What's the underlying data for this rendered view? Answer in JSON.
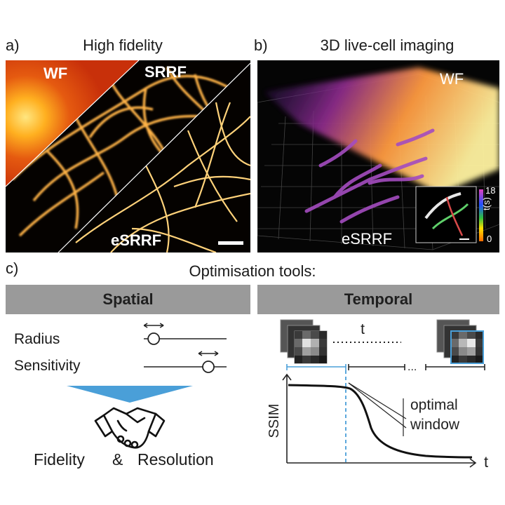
{
  "panel_a": {
    "letter": "a)",
    "title": "High fidelity",
    "labels": {
      "wf": "WF",
      "srrf": "SRRF",
      "esrrf": "eSRRF"
    }
  },
  "panel_b": {
    "letter": "b)",
    "title": "3D live-cell imaging",
    "labels": {
      "wf": "WF",
      "esrrf": "eSRRF"
    },
    "colorbar": {
      "max": "18",
      "min": "0",
      "label": "t(s)"
    }
  },
  "panel_c": {
    "letter": "c)",
    "title": "Optimisation tools:",
    "spatial": {
      "header": "Spatial",
      "params": [
        "Radius",
        "Sensitivity"
      ],
      "slider_levels": [
        0.12,
        0.78
      ],
      "outcome_left": "Fidelity",
      "outcome_amp": "&",
      "outcome_right": "Resolution"
    },
    "temporal": {
      "header": "Temporal",
      "t_label": "t",
      "ellipsis": "...",
      "ylabel": "SSIM",
      "xlabel": "t",
      "annotation_line1": "optimal",
      "annotation_line2": "window"
    }
  },
  "colors": {
    "accent_blue": "#4a9fd8",
    "header_gray": "#9a9a9a",
    "dark_bg": "#0a0a0a"
  }
}
